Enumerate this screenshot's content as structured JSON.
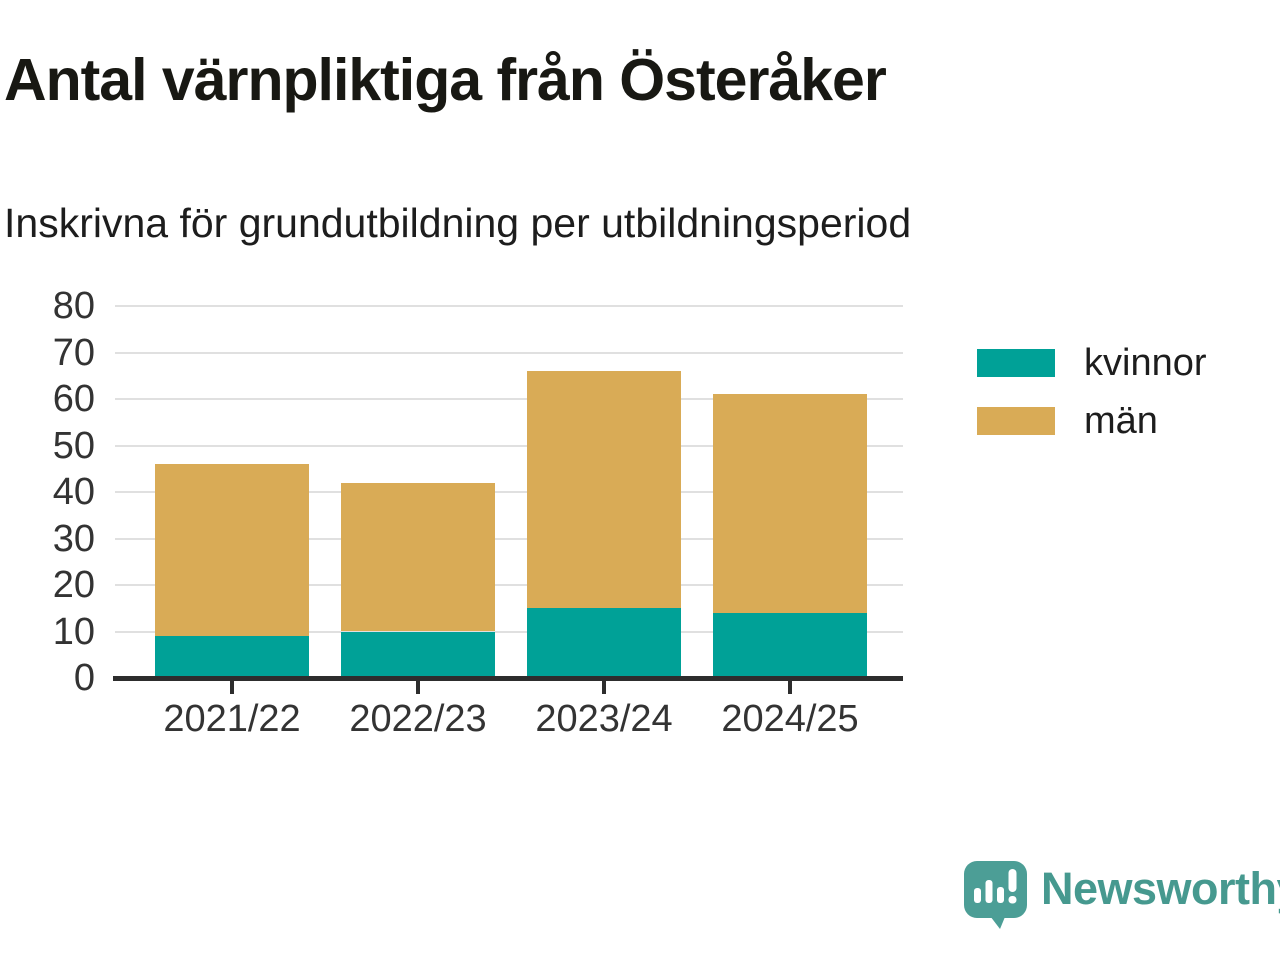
{
  "chart_data": {
    "type": "bar",
    "stacked": true,
    "title": "Antal värnpliktiga från Österåker",
    "subtitle": "Inskrivna för grundutbildning per utbildningsperiod",
    "categories": [
      "2021/22",
      "2022/23",
      "2023/24",
      "2024/25"
    ],
    "series": [
      {
        "name": "kvinnor",
        "color": "#00A197",
        "values": [
          9,
          10,
          15,
          14
        ]
      },
      {
        "name": "män",
        "color": "#D9AB56",
        "values": [
          37,
          32,
          51,
          47
        ]
      }
    ],
    "stack_totals": [
      46,
      42,
      66,
      61
    ],
    "ylim": [
      0,
      80
    ],
    "yticks": [
      0,
      10,
      20,
      30,
      40,
      50,
      60,
      70,
      80
    ],
    "xlabel": "",
    "ylabel": "",
    "grid": true,
    "legend_position": "right-top"
  },
  "colors": {
    "background": "#FFFFFF",
    "grid": "#E0E0E0",
    "axis": "#2D2D2D",
    "tick_label": "#333333",
    "title_text": "#181813"
  },
  "branding": {
    "logo_text": "Newsworthy",
    "logo_text_color": "#46998F",
    "logo_icon_color": "#4C9E96",
    "logo_icon": "newsworthy-speech-bubble-bar-chart-icon"
  }
}
